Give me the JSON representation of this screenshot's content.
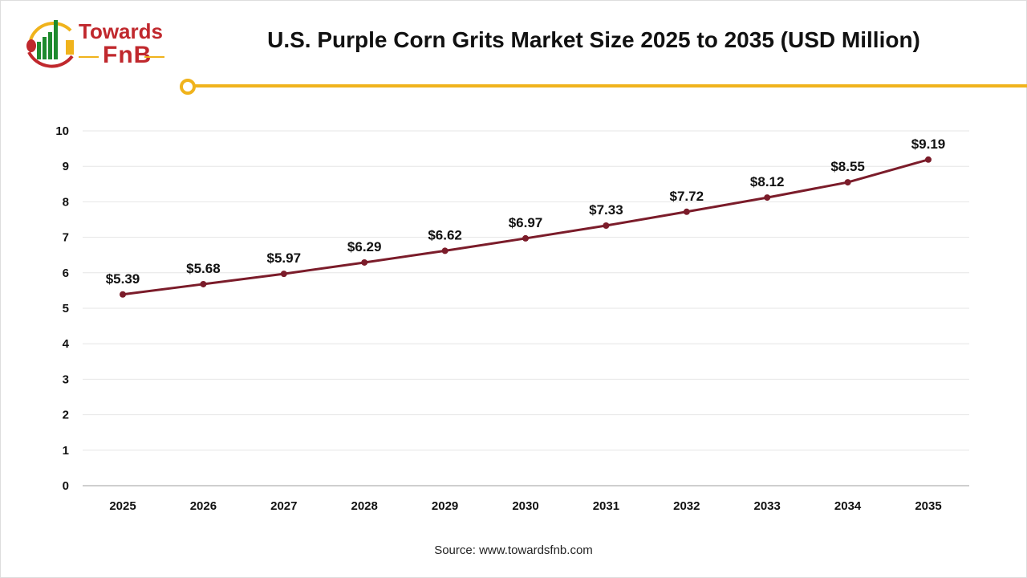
{
  "logo": {
    "line1": "Towards",
    "line2": "FnB"
  },
  "colors": {
    "line": "#7b1c2a",
    "accent": "#f0b31c",
    "brand_red": "#c0282d",
    "brand_green": "#1e8a2e"
  },
  "source": "Source: www.towardsfnb.com",
  "chart_data": {
    "type": "line",
    "title": "U.S. Purple Corn Grits Market Size 2025 to 2035 (USD Million)",
    "categories": [
      "2025",
      "2026",
      "2027",
      "2028",
      "2029",
      "2030",
      "2031",
      "2032",
      "2033",
      "2034",
      "2035"
    ],
    "values": [
      5.39,
      5.68,
      5.97,
      6.29,
      6.62,
      6.97,
      7.33,
      7.72,
      8.12,
      8.55,
      9.19
    ],
    "data_labels": [
      "$5.39",
      "$5.68",
      "$5.97",
      "$6.29",
      "$6.62",
      "$6.97",
      "$7.33",
      "$7.72",
      "$8.12",
      "$8.55",
      "$9.19"
    ],
    "yticks": [
      "0",
      "1",
      "2",
      "3",
      "4",
      "5",
      "6",
      "7",
      "8",
      "9",
      "10"
    ],
    "ylim": [
      0,
      10
    ],
    "grid": true,
    "legend": "none"
  }
}
